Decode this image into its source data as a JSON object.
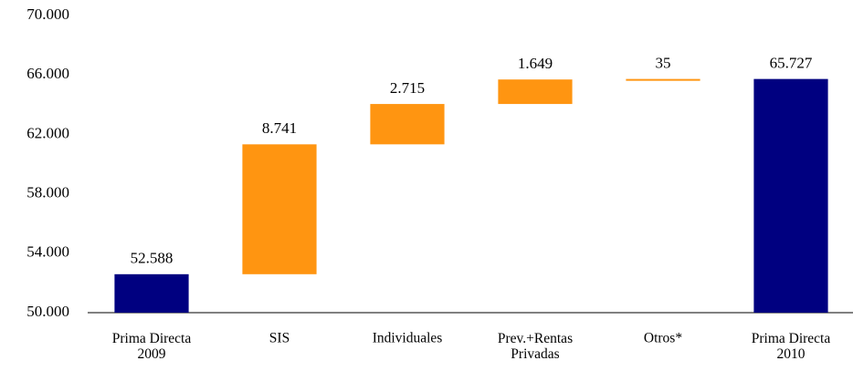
{
  "chart_data": {
    "type": "waterfall",
    "categories": [
      "Prima Directa\n2009",
      "SIS",
      "Individuales",
      "Prev.+Rentas\nPrivadas",
      "Otros*",
      "Prima Directa\n2010"
    ],
    "values": [
      52588,
      8741,
      2715,
      1649,
      35,
      65727
    ],
    "value_labels": [
      "52.588",
      "8.741",
      "2.715",
      "1.649",
      "35",
      "65.727"
    ],
    "is_total": [
      true,
      false,
      false,
      false,
      false,
      true
    ],
    "total_color": "#000080",
    "increase_color": "#ff9511",
    "ylim": [
      50000,
      70000
    ],
    "yticks": [
      {
        "value": 50000,
        "label": "50.000"
      },
      {
        "value": 54000,
        "label": "54.000"
      },
      {
        "value": 58000,
        "label": "58.000"
      },
      {
        "value": 62000,
        "label": "62.000"
      },
      {
        "value": 66000,
        "label": "66.000"
      },
      {
        "value": 70000,
        "label": "70.000"
      }
    ],
    "grid": false
  }
}
